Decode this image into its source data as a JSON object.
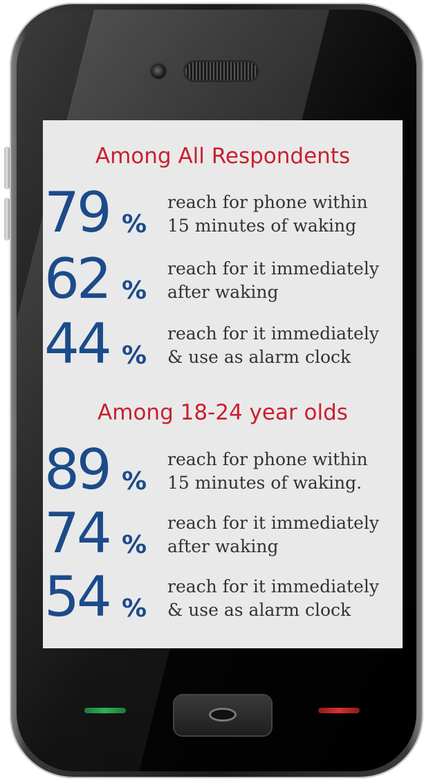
{
  "sections": [
    {
      "heading": "Among All Respondents",
      "stats": [
        {
          "value": "79",
          "unit": "%",
          "line1": "reach for phone within",
          "line2": "15 minutes of waking"
        },
        {
          "value": "62",
          "unit": "%",
          "line1": "reach for it immediately",
          "line2": "after waking"
        },
        {
          "value": "44",
          "unit": "%",
          "line1": "reach for it immediately",
          "line2": "& use as alarm clock"
        }
      ]
    },
    {
      "heading": "Among 18-24 year olds",
      "stats": [
        {
          "value": "89",
          "unit": "%",
          "line1": "reach for phone within",
          "line2": "15 minutes of waking."
        },
        {
          "value": "74",
          "unit": "%",
          "line1": "reach for it immediately",
          "line2": "after waking"
        },
        {
          "value": "54",
          "unit": "%",
          "line1": "reach for it immediately",
          "line2": "& use as alarm clock"
        }
      ]
    }
  ],
  "colors": {
    "heading": "#c8202e",
    "number": "#1c4b8a",
    "text": "#333333",
    "screen": "#e9e9ea",
    "call_button": "#2fb25a",
    "end_button": "#d83232"
  },
  "icons": {
    "camera": "camera-icon",
    "speaker": "speaker-grille-icon",
    "home": "home-button-icon"
  }
}
